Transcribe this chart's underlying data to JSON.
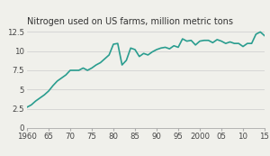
{
  "title": "Nitrogen used on US farms, million metric tons",
  "line_color": "#2a9d8f",
  "background_color": "#f0f0eb",
  "years": [
    1960,
    1961,
    1962,
    1963,
    1964,
    1965,
    1966,
    1967,
    1968,
    1969,
    1970,
    1971,
    1972,
    1973,
    1974,
    1975,
    1976,
    1977,
    1978,
    1979,
    1980,
    1981,
    1982,
    1983,
    1984,
    1985,
    1986,
    1987,
    1988,
    1989,
    1990,
    1991,
    1992,
    1993,
    1994,
    1995,
    1996,
    1997,
    1998,
    1999,
    2000,
    2001,
    2002,
    2003,
    2004,
    2005,
    2006,
    2007,
    2008,
    2009,
    2010,
    2011,
    2012,
    2013,
    2014,
    2015
  ],
  "values": [
    2.7,
    3.0,
    3.5,
    3.9,
    4.3,
    4.8,
    5.5,
    6.1,
    6.5,
    6.9,
    7.5,
    7.5,
    7.5,
    7.8,
    7.5,
    7.8,
    8.2,
    8.5,
    9.0,
    9.5,
    10.9,
    11.0,
    8.2,
    8.8,
    10.4,
    10.2,
    9.3,
    9.7,
    9.5,
    9.9,
    10.2,
    10.4,
    10.5,
    10.3,
    10.7,
    10.5,
    11.6,
    11.3,
    11.4,
    10.8,
    11.3,
    11.4,
    11.4,
    11.1,
    11.5,
    11.3,
    11.0,
    11.2,
    11.0,
    11.0,
    10.6,
    11.0,
    11.0,
    12.2,
    12.5,
    12.0
  ],
  "xlim": [
    1960,
    2015
  ],
  "ylim": [
    0,
    13.0
  ],
  "xticks": [
    1960,
    1965,
    1970,
    1975,
    1980,
    1985,
    1990,
    1995,
    2000,
    2005,
    2010,
    2015
  ],
  "xticklabels": [
    "1960",
    "65",
    "70",
    "75",
    "80",
    "85",
    "90",
    "95",
    "2000",
    "05",
    "10",
    "15"
  ],
  "yticks": [
    0,
    2.5,
    5.0,
    7.5,
    10.0,
    12.5
  ],
  "yticklabels": [
    "0",
    "2.5",
    "5",
    "7.5",
    "10",
    "12.5"
  ],
  "grid_color": "#cccccc",
  "line_width": 1.2,
  "title_fontsize": 7.0,
  "tick_fontsize": 6.2
}
